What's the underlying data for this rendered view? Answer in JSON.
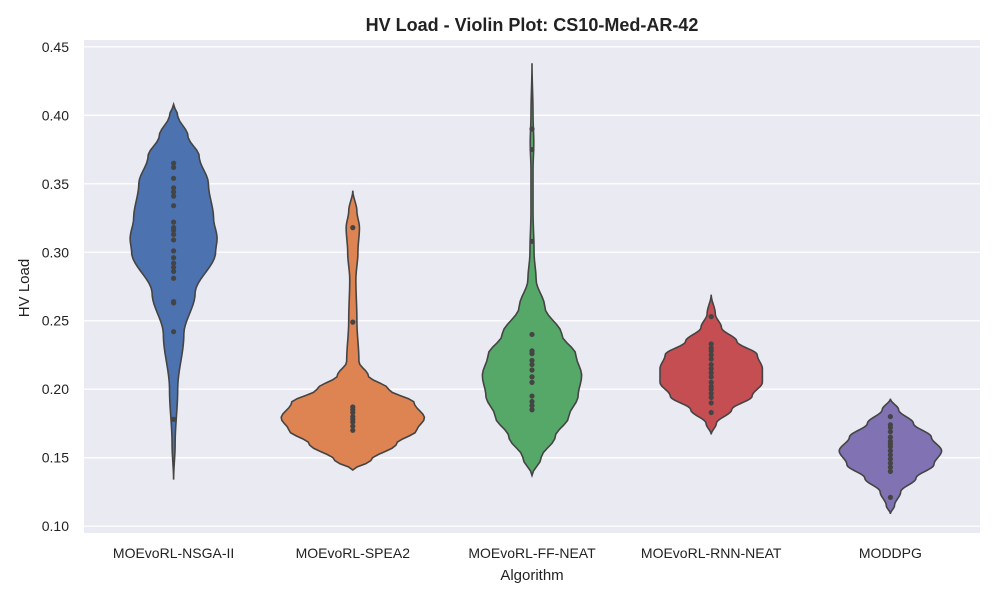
{
  "chart_data": {
    "type": "violin",
    "title": "HV Load - Violin Plot: CS10-Med-AR-42",
    "xlabel": "Algorithm",
    "ylabel": "HV Load",
    "ylim": [
      0.095,
      0.455
    ],
    "yticks": [
      "0.10",
      "0.15",
      "0.20",
      "0.25",
      "0.30",
      "0.35",
      "0.40",
      "0.45"
    ],
    "grid": true,
    "categories": [
      "MOEvoRL-NSGA-II",
      "MOEvoRL-SPEA2",
      "MOEvoRL-FF-NEAT",
      "MOEvoRL-RNN-NEAT",
      "MODDPG"
    ],
    "series": [
      {
        "color": "#4c72b0",
        "range": [
          0.134,
          0.408
        ],
        "width_profile": [
          [
            0.134,
            0.0
          ],
          [
            0.16,
            0.03
          ],
          [
            0.2,
            0.08
          ],
          [
            0.24,
            0.2
          ],
          [
            0.27,
            0.42
          ],
          [
            0.3,
            0.82
          ],
          [
            0.31,
            0.85
          ],
          [
            0.325,
            0.78
          ],
          [
            0.35,
            0.68
          ],
          [
            0.37,
            0.5
          ],
          [
            0.385,
            0.28
          ],
          [
            0.4,
            0.08
          ],
          [
            0.408,
            0.0
          ]
        ],
        "points": [
          0.178,
          0.242,
          0.263,
          0.264,
          0.281,
          0.286,
          0.289,
          0.292,
          0.296,
          0.301,
          0.309,
          0.313,
          0.316,
          0.318,
          0.322,
          0.334,
          0.341,
          0.344,
          0.347,
          0.354,
          0.362,
          0.365
        ]
      },
      {
        "color": "#dd8452",
        "range": [
          0.141,
          0.345
        ],
        "width_profile": [
          [
            0.141,
            0.0
          ],
          [
            0.148,
            0.35
          ],
          [
            0.16,
            0.85
          ],
          [
            0.17,
            1.25
          ],
          [
            0.179,
            1.4
          ],
          [
            0.19,
            1.2
          ],
          [
            0.2,
            0.7
          ],
          [
            0.21,
            0.3
          ],
          [
            0.22,
            0.12
          ],
          [
            0.25,
            0.08
          ],
          [
            0.28,
            0.06
          ],
          [
            0.3,
            0.1
          ],
          [
            0.318,
            0.13
          ],
          [
            0.33,
            0.08
          ],
          [
            0.345,
            0.0
          ]
        ],
        "points": [
          0.17,
          0.173,
          0.176,
          0.178,
          0.18,
          0.183,
          0.185,
          0.187,
          0.249,
          0.318
        ]
      },
      {
        "color": "#55a868",
        "range": [
          0.137,
          0.438
        ],
        "width_profile": [
          [
            0.137,
            0.0
          ],
          [
            0.15,
            0.18
          ],
          [
            0.165,
            0.45
          ],
          [
            0.18,
            0.72
          ],
          [
            0.195,
            0.9
          ],
          [
            0.21,
            0.97
          ],
          [
            0.225,
            0.86
          ],
          [
            0.24,
            0.58
          ],
          [
            0.26,
            0.25
          ],
          [
            0.28,
            0.08
          ],
          [
            0.3,
            0.04
          ],
          [
            0.33,
            0.02
          ],
          [
            0.36,
            0.02
          ],
          [
            0.38,
            0.035
          ],
          [
            0.4,
            0.02
          ],
          [
            0.438,
            0.0
          ]
        ],
        "points": [
          0.185,
          0.188,
          0.191,
          0.195,
          0.205,
          0.209,
          0.214,
          0.218,
          0.221,
          0.226,
          0.228,
          0.24,
          0.308,
          0.375,
          0.39
        ]
      },
      {
        "color": "#c44e52",
        "range": [
          0.167,
          0.269
        ],
        "width_profile": [
          [
            0.167,
            0.0
          ],
          [
            0.175,
            0.1
          ],
          [
            0.185,
            0.4
          ],
          [
            0.195,
            0.8
          ],
          [
            0.205,
            1.0
          ],
          [
            0.215,
            1.0
          ],
          [
            0.225,
            0.9
          ],
          [
            0.235,
            0.5
          ],
          [
            0.245,
            0.2
          ],
          [
            0.255,
            0.08
          ],
          [
            0.269,
            0.0
          ]
        ],
        "points": [
          0.183,
          0.19,
          0.194,
          0.197,
          0.2,
          0.202,
          0.205,
          0.209,
          0.212,
          0.215,
          0.218,
          0.222,
          0.225,
          0.228,
          0.23,
          0.233,
          0.253
        ]
      },
      {
        "color": "#8172b3",
        "range": [
          0.109,
          0.193
        ],
        "width_profile": [
          [
            0.109,
            0.0
          ],
          [
            0.115,
            0.08
          ],
          [
            0.125,
            0.2
          ],
          [
            0.135,
            0.5
          ],
          [
            0.145,
            0.85
          ],
          [
            0.155,
            1.0
          ],
          [
            0.165,
            0.8
          ],
          [
            0.175,
            0.45
          ],
          [
            0.185,
            0.16
          ],
          [
            0.193,
            0.0
          ]
        ],
        "points": [
          0.121,
          0.14,
          0.143,
          0.146,
          0.149,
          0.152,
          0.155,
          0.158,
          0.16,
          0.162,
          0.165,
          0.169,
          0.172,
          0.174,
          0.18
        ]
      }
    ]
  }
}
